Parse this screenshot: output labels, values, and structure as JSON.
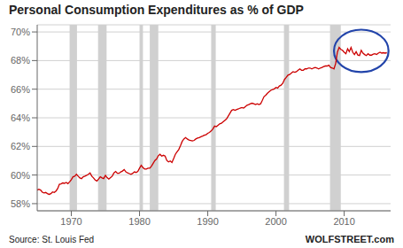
{
  "chart_data": {
    "type": "line",
    "title": "Personal Consumption Expenditures as % of GDP",
    "x": [
      1965.0,
      1965.25,
      1965.5,
      1965.75,
      1966.0,
      1966.25,
      1966.5,
      1966.75,
      1967.0,
      1967.25,
      1967.5,
      1967.75,
      1968.0,
      1968.25,
      1968.5,
      1968.75,
      1969.0,
      1969.25,
      1969.5,
      1969.75,
      1970.0,
      1970.25,
      1970.5,
      1970.75,
      1971.0,
      1971.25,
      1971.5,
      1971.75,
      1972.0,
      1972.25,
      1972.5,
      1972.75,
      1973.0,
      1973.25,
      1973.5,
      1973.75,
      1974.0,
      1974.25,
      1974.5,
      1974.75,
      1975.0,
      1975.25,
      1975.5,
      1975.75,
      1976.0,
      1976.25,
      1976.5,
      1976.75,
      1977.0,
      1977.25,
      1977.5,
      1977.75,
      1978.0,
      1978.25,
      1978.5,
      1978.75,
      1979.0,
      1979.25,
      1979.5,
      1979.75,
      1980.0,
      1980.25,
      1980.5,
      1980.75,
      1981.0,
      1981.25,
      1981.5,
      1981.75,
      1982.0,
      1982.25,
      1982.5,
      1982.75,
      1983.0,
      1983.25,
      1983.5,
      1983.75,
      1984.0,
      1984.25,
      1984.5,
      1984.75,
      1985.0,
      1985.25,
      1985.5,
      1985.75,
      1986.0,
      1986.25,
      1986.5,
      1986.75,
      1987.0,
      1987.25,
      1987.5,
      1987.75,
      1988.0,
      1988.25,
      1988.5,
      1988.75,
      1989.0,
      1989.25,
      1989.5,
      1989.75,
      1990.0,
      1990.25,
      1990.5,
      1990.75,
      1991.0,
      1991.25,
      1991.5,
      1991.75,
      1992.0,
      1992.25,
      1992.5,
      1992.75,
      1993.0,
      1993.25,
      1993.5,
      1993.75,
      1994.0,
      1994.25,
      1994.5,
      1994.75,
      1995.0,
      1995.25,
      1995.5,
      1995.75,
      1996.0,
      1996.25,
      1996.5,
      1996.75,
      1997.0,
      1997.25,
      1997.5,
      1997.75,
      1998.0,
      1998.25,
      1998.5,
      1998.75,
      1999.0,
      1999.25,
      1999.5,
      1999.75,
      2000.0,
      2000.25,
      2000.5,
      2000.75,
      2001.0,
      2001.25,
      2001.5,
      2001.75,
      2002.0,
      2002.25,
      2002.5,
      2002.75,
      2003.0,
      2003.25,
      2003.5,
      2003.75,
      2004.0,
      2004.25,
      2004.5,
      2004.75,
      2005.0,
      2005.25,
      2005.5,
      2005.75,
      2006.0,
      2006.25,
      2006.5,
      2006.75,
      2007.0,
      2007.25,
      2007.5,
      2007.75,
      2008.0,
      2008.25,
      2008.5,
      2008.75,
      2009.0,
      2009.25,
      2009.5,
      2009.75,
      2010.0,
      2010.25,
      2010.5,
      2010.75,
      2011.0,
      2011.25,
      2011.5,
      2011.75,
      2012.0,
      2012.25,
      2012.5,
      2012.75,
      2013.0,
      2013.25,
      2013.5,
      2013.75,
      2014.0,
      2014.25,
      2014.5,
      2014.75,
      2015.0,
      2015.25,
      2015.5,
      2015.75,
      2016.0,
      2016.25
    ],
    "values": [
      0.5895,
      0.59,
      0.5895,
      0.588,
      0.5875,
      0.5878,
      0.587,
      0.5865,
      0.587,
      0.5882,
      0.5878,
      0.5888,
      0.5905,
      0.5935,
      0.5938,
      0.5945,
      0.5942,
      0.5948,
      0.594,
      0.5952,
      0.5968,
      0.5988,
      0.5992,
      0.6005,
      0.5992,
      0.598,
      0.5975,
      0.5988,
      0.5992,
      0.5998,
      0.6005,
      0.6015,
      0.5992,
      0.598,
      0.5965,
      0.5958,
      0.5972,
      0.5988,
      0.598,
      0.5975,
      0.5998,
      0.5982,
      0.5972,
      0.5982,
      0.5992,
      0.6015,
      0.6025,
      0.6012,
      0.6012,
      0.6022,
      0.6028,
      0.6038,
      0.6022,
      0.6015,
      0.601,
      0.6005,
      0.6012,
      0.6022,
      0.6018,
      0.6025,
      0.6048,
      0.6068,
      0.6052,
      0.6042,
      0.6042,
      0.6048,
      0.6048,
      0.6062,
      0.6082,
      0.6102,
      0.6112,
      0.6135,
      0.6145,
      0.6132,
      0.6138,
      0.6132,
      0.6102,
      0.6092,
      0.6098,
      0.6088,
      0.6115,
      0.6145,
      0.6162,
      0.6178,
      0.6205,
      0.6235,
      0.6252,
      0.6262,
      0.6252,
      0.6245,
      0.6242,
      0.6238,
      0.6242,
      0.6252,
      0.6258,
      0.6262,
      0.6268,
      0.6272,
      0.6278,
      0.6282,
      0.6292,
      0.6298,
      0.6308,
      0.6322,
      0.6342,
      0.6338,
      0.6348,
      0.6358,
      0.6362,
      0.6372,
      0.6382,
      0.6392,
      0.6412,
      0.6432,
      0.6452,
      0.6458,
      0.6452,
      0.6458,
      0.6462,
      0.6468,
      0.6472,
      0.6468,
      0.6478,
      0.6488,
      0.6492,
      0.6498,
      0.6502,
      0.6498,
      0.6492,
      0.6498,
      0.6492,
      0.6498,
      0.6522,
      0.6548,
      0.6558,
      0.6572,
      0.6582,
      0.6592,
      0.6598,
      0.6602,
      0.6612,
      0.6608,
      0.6622,
      0.6628,
      0.6642,
      0.6668,
      0.6682,
      0.6698,
      0.6702,
      0.6712,
      0.6722,
      0.6718,
      0.6722,
      0.6732,
      0.6742,
      0.6732,
      0.6732,
      0.6742,
      0.6742,
      0.6748,
      0.6748,
      0.6742,
      0.6748,
      0.6752,
      0.6748,
      0.6742,
      0.6748,
      0.6752,
      0.6758,
      0.6762,
      0.6762,
      0.6768,
      0.6752,
      0.6748,
      0.6742,
      0.678,
      0.6858,
      0.6892,
      0.6878,
      0.6872,
      0.6858,
      0.6848,
      0.6882,
      0.6862,
      0.6892,
      0.6858,
      0.6842,
      0.6862,
      0.6838,
      0.6835,
      0.6872,
      0.6852,
      0.6842,
      0.6835,
      0.6848,
      0.6838,
      0.6838,
      0.6845,
      0.6848,
      0.6842,
      0.6852,
      0.6858,
      0.6852,
      0.6855,
      0.6852,
      0.6855
    ],
    "color": "#cc0000",
    "xlim": [
      1965.0,
      2016.8
    ],
    "ylim": [
      0.575,
      0.705
    ],
    "xticks": [
      1970,
      1980,
      1990,
      2000,
      2010
    ],
    "yticks": [
      {
        "value": 0.58,
        "label": "58%"
      },
      {
        "value": 0.6,
        "label": "60%"
      },
      {
        "value": 0.62,
        "label": "62%"
      },
      {
        "value": 0.64,
        "label": "64%"
      },
      {
        "value": 0.66,
        "label": "66%"
      },
      {
        "value": 0.68,
        "label": "68%"
      },
      {
        "value": 0.7,
        "label": "70%"
      }
    ],
    "grid": true,
    "recessions": {
      "color": "#d0d0d0",
      "spans": [
        [
          1969.75,
          1970.83
        ],
        [
          1973.92,
          1975.17
        ],
        [
          1980.0,
          1980.5
        ],
        [
          1981.5,
          1982.75
        ],
        [
          1990.5,
          1991.17
        ],
        [
          2001.17,
          2001.92
        ],
        [
          2007.92,
          2009.5
        ]
      ]
    },
    "ellipse": {
      "cx": 2012.5,
      "cy": 0.6868,
      "rx": 4.0,
      "ry": 0.0148,
      "color": "#2244aa"
    },
    "annotations": [
      "Source: St. Louis Fed",
      "WOLFSTREET.com"
    ]
  }
}
